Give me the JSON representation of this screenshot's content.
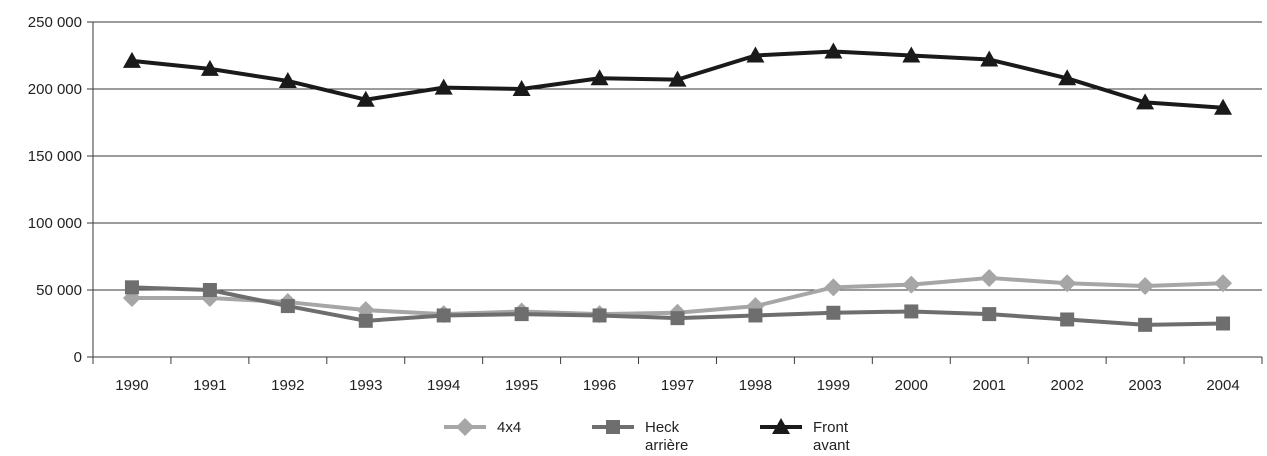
{
  "chart_data": {
    "type": "line",
    "title": "",
    "xlabel": "",
    "ylabel": "",
    "categories": [
      "1990",
      "1991",
      "1992",
      "1993",
      "1994",
      "1995",
      "1996",
      "1997",
      "1998",
      "1999",
      "2000",
      "2001",
      "2002",
      "2003",
      "2004"
    ],
    "ylim": [
      0,
      250000
    ],
    "yticks": [
      0,
      50000,
      100000,
      150000,
      200000,
      250000
    ],
    "ytick_labels": [
      "0",
      "50 000",
      "100 000",
      "150 000",
      "200 000",
      "250 000"
    ],
    "grid": "horizontal",
    "legend_position": "bottom",
    "series": [
      {
        "name": "4x4",
        "legend_lines": [
          "4x4"
        ],
        "color": "#a6a6a6",
        "marker": "diamond",
        "values": [
          44000,
          44000,
          41000,
          35000,
          32000,
          34000,
          32000,
          33000,
          38000,
          52000,
          54000,
          59000,
          55000,
          53000,
          55000
        ]
      },
      {
        "name": "Heck arrière",
        "legend_lines": [
          "Heck",
          "arrière"
        ],
        "color": "#6e6e6e",
        "marker": "square",
        "values": [
          52000,
          50000,
          38000,
          27000,
          31000,
          32000,
          31000,
          29000,
          31000,
          33000,
          34000,
          32000,
          28000,
          24000,
          25000
        ]
      },
      {
        "name": "Front avant",
        "legend_lines": [
          "Front",
          "avant"
        ],
        "color": "#1a1a1a",
        "marker": "triangle",
        "values": [
          221000,
          215000,
          206000,
          192000,
          201000,
          200000,
          208000,
          207000,
          225000,
          228000,
          225000,
          222000,
          208000,
          190000,
          186000
        ]
      }
    ]
  }
}
